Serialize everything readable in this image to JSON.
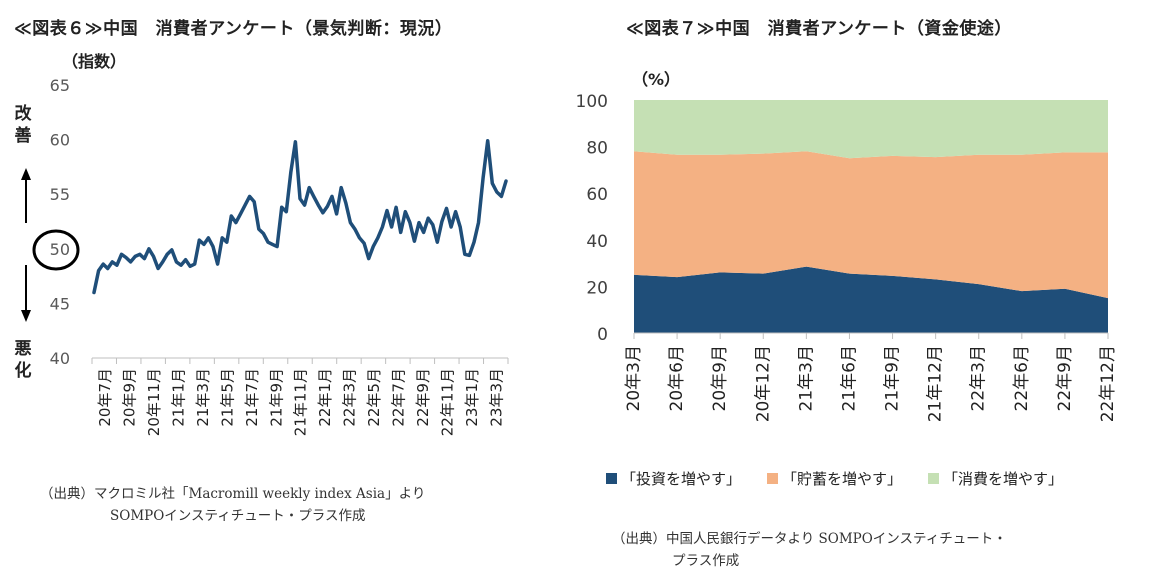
{
  "left_chart": {
    "title": "≪図表６≫中国　消費者アンケート（景気判断：現況）",
    "unit_label": "（指数）",
    "improve_label": "改善",
    "worsen_label": "悪化",
    "source_line1": "（出典）マクロミル社「Macromill weekly index Asia」より",
    "source_line2": "SOMPOインスティチュート・プラス作成",
    "line_color": "#1f4e79",
    "circle_value": "50"
  },
  "right_chart": {
    "title": "≪図表７≫中国　消費者アンケート（資金使途）",
    "unit_label": "（%）",
    "source_line1": "（出典）中国人民銀行データより SOMPOインスティチュート・",
    "source_line2": "プラス作成"
  },
  "chart_data": [
    {
      "type": "line",
      "title": "≪図表６≫中国　消費者アンケート（景気判断：現況）",
      "ylabel": "（指数）",
      "ylim": [
        40,
        65
      ],
      "yticks": [
        40,
        45,
        50,
        55,
        60,
        65
      ],
      "xticklabels": [
        "20年7月",
        "20年9月",
        "20年11月",
        "21年1月",
        "21年3月",
        "21年5月",
        "21年7月",
        "21年9月",
        "21年11月",
        "22年1月",
        "22年3月",
        "22年5月",
        "22年7月",
        "22年9月",
        "22年11月",
        "23年1月",
        "23年3月"
      ],
      "series": [
        {
          "color": "#1f4e79",
          "values": [
            46.0,
            48.0,
            48.6,
            48.2,
            48.8,
            48.5,
            49.5,
            49.2,
            48.8,
            49.3,
            49.5,
            49.1,
            50.0,
            49.3,
            48.2,
            48.8,
            49.5,
            49.9,
            48.8,
            48.5,
            49.0,
            48.4,
            48.6,
            50.8,
            50.4,
            51.0,
            50.2,
            48.6,
            51.0,
            50.6,
            53.0,
            52.4,
            53.2,
            54.0,
            54.8,
            54.3,
            51.8,
            51.4,
            50.6,
            50.4,
            50.2,
            53.8,
            53.4,
            57.0,
            59.8,
            54.6,
            54.0,
            55.6,
            54.8,
            54.0,
            53.3,
            53.9,
            54.8,
            53.2,
            55.6,
            54.2,
            52.4,
            51.8,
            51.0,
            50.5,
            49.1,
            50.2,
            51.0,
            52.0,
            53.5,
            52.0,
            53.8,
            51.5,
            53.4,
            52.4,
            50.7,
            52.4,
            51.5,
            52.8,
            52.2,
            50.6,
            52.5,
            53.7,
            52.0,
            53.4,
            52.0,
            49.5,
            49.4,
            50.6,
            52.4,
            56.5,
            59.9,
            56.0,
            55.2,
            54.8,
            56.2
          ]
        }
      ],
      "grid": false,
      "legend": "none"
    },
    {
      "type": "area",
      "stacked": true,
      "title": "≪図表７≫中国　消費者アンケート（資金使途）",
      "ylabel": "（%）",
      "ylim": [
        0,
        100
      ],
      "yticks": [
        0,
        20,
        40,
        60,
        80,
        100
      ],
      "categories": [
        "20年3月",
        "20年6月",
        "20年9月",
        "20年12月",
        "21年3月",
        "21年6月",
        "21年9月",
        "21年12月",
        "22年3月",
        "22年6月",
        "22年9月",
        "22年12月"
      ],
      "series": [
        {
          "name": "「投資を増やす」",
          "color": "#1f4e79",
          "values": [
            25.0,
            24.0,
            26.0,
            25.5,
            28.5,
            25.5,
            24.5,
            23.0,
            21.0,
            18.0,
            19.0,
            15.0
          ]
        },
        {
          "name": "「貯蓄を増やす」",
          "color": "#f4b183",
          "values": [
            53.0,
            52.5,
            50.5,
            51.5,
            49.5,
            49.5,
            51.5,
            52.5,
            55.5,
            58.5,
            58.5,
            62.5
          ]
        },
        {
          "name": "「消費を増やす」",
          "color": "#c5e0b4",
          "values": [
            22.0,
            23.5,
            23.5,
            23.0,
            22.0,
            25.0,
            24.0,
            24.5,
            23.5,
            23.5,
            22.5,
            22.5
          ]
        }
      ],
      "grid": false,
      "legend": "bottom"
    }
  ]
}
